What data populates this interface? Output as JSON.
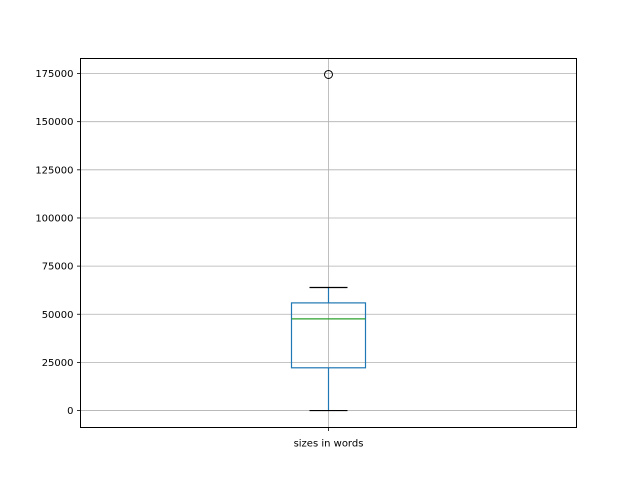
{
  "chart_data": {
    "type": "box",
    "title": "",
    "xlabel": "",
    "ylabel": "",
    "categories": [
      "sizes in words"
    ],
    "boxes": [
      {
        "label": "sizes in words",
        "whisker_low": 0,
        "q1": 22200,
        "median": 47600,
        "q3": 55900,
        "whisker_high": 63900,
        "outliers": [
          174500
        ]
      }
    ],
    "ylim": [
      -8800,
      182800
    ],
    "yticks": [
      0,
      25000,
      50000,
      75000,
      100000,
      125000,
      150000,
      175000
    ],
    "ytick_labels": [
      "0",
      "25000",
      "50000",
      "75000",
      "100000",
      "125000",
      "150000",
      "175000"
    ],
    "grid": true,
    "colors": {
      "box": "#1f77b4",
      "median": "#2ca02c",
      "caps": "#000000",
      "grid": "#b0b0b0"
    }
  }
}
